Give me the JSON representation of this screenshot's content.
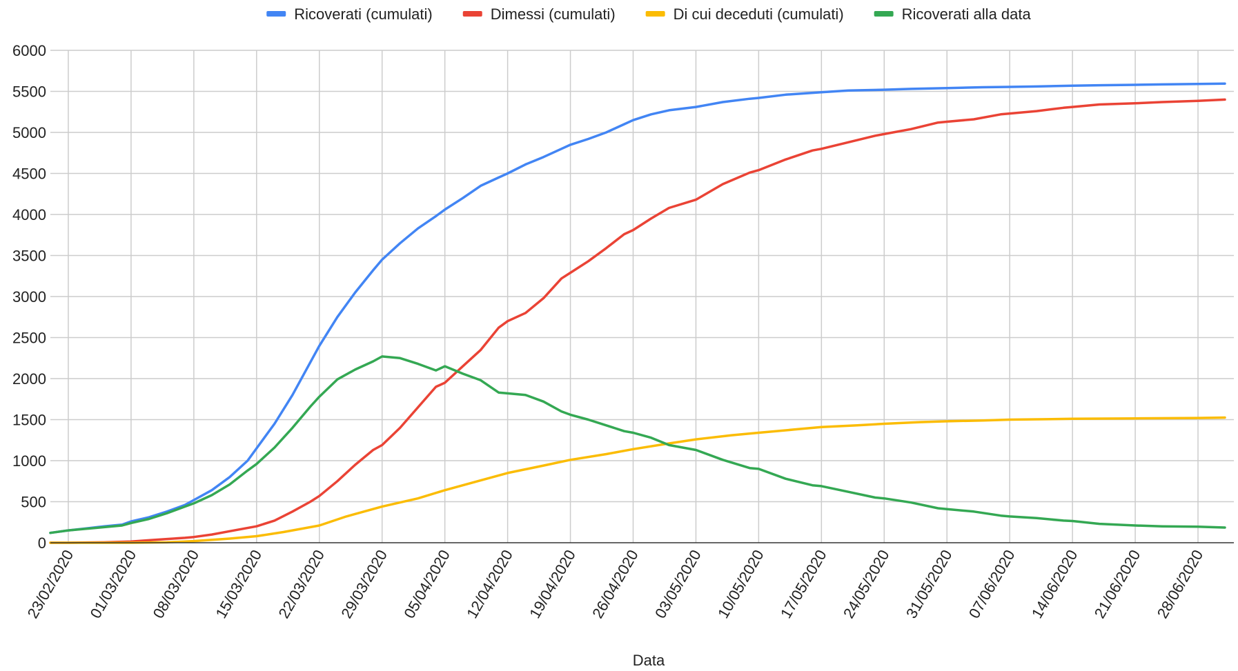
{
  "chart_data": {
    "type": "line",
    "xlabel": "Data",
    "ylabel": "",
    "ylim": [
      0,
      6000
    ],
    "y_ticks": [
      0,
      500,
      1000,
      1500,
      2000,
      2500,
      3000,
      3500,
      4000,
      4500,
      5000,
      5500,
      6000
    ],
    "x_tick_labels": [
      "23/02/2020",
      "01/03/2020",
      "08/03/2020",
      "15/03/2020",
      "22/03/2020",
      "29/03/2020",
      "05/04/2020",
      "12/04/2020",
      "19/04/2020",
      "26/04/2020",
      "03/05/2020",
      "10/05/2020",
      "17/05/2020",
      "24/05/2020",
      "31/05/2020",
      "07/06/2020",
      "14/06/2020",
      "21/06/2020",
      "28/06/2020"
    ],
    "x_range": [
      "21/02/2020",
      "02/07/2020"
    ],
    "grid": true,
    "legend_position": "top",
    "series": [
      {
        "name": "Ricoverati (cumulati)",
        "color": "#4285F4",
        "points": [
          [
            "21/02/2020",
            120
          ],
          [
            "23/02/2020",
            150
          ],
          [
            "25/02/2020",
            175
          ],
          [
            "27/02/2020",
            200
          ],
          [
            "29/02/2020",
            220
          ],
          [
            "01/03/2020",
            260
          ],
          [
            "03/03/2020",
            310
          ],
          [
            "05/03/2020",
            380
          ],
          [
            "07/03/2020",
            460
          ],
          [
            "08/03/2020",
            520
          ],
          [
            "10/03/2020",
            640
          ],
          [
            "12/03/2020",
            800
          ],
          [
            "14/03/2020",
            1000
          ],
          [
            "15/03/2020",
            1150
          ],
          [
            "17/03/2020",
            1450
          ],
          [
            "19/03/2020",
            1800
          ],
          [
            "21/03/2020",
            2200
          ],
          [
            "22/03/2020",
            2400
          ],
          [
            "24/03/2020",
            2750
          ],
          [
            "26/03/2020",
            3050
          ],
          [
            "28/03/2020",
            3320
          ],
          [
            "29/03/2020",
            3450
          ],
          [
            "31/03/2020",
            3650
          ],
          [
            "02/04/2020",
            3830
          ],
          [
            "04/04/2020",
            3980
          ],
          [
            "05/04/2020",
            4060
          ],
          [
            "07/04/2020",
            4200
          ],
          [
            "09/04/2020",
            4350
          ],
          [
            "11/04/2020",
            4450
          ],
          [
            "12/04/2020",
            4500
          ],
          [
            "14/04/2020",
            4610
          ],
          [
            "16/04/2020",
            4700
          ],
          [
            "18/04/2020",
            4800
          ],
          [
            "19/04/2020",
            4850
          ],
          [
            "21/04/2020",
            4920
          ],
          [
            "23/04/2020",
            5000
          ],
          [
            "25/04/2020",
            5100
          ],
          [
            "26/04/2020",
            5150
          ],
          [
            "28/04/2020",
            5220
          ],
          [
            "30/04/2020",
            5270
          ],
          [
            "03/05/2020",
            5310
          ],
          [
            "06/05/2020",
            5370
          ],
          [
            "09/05/2020",
            5410
          ],
          [
            "10/05/2020",
            5420
          ],
          [
            "13/05/2020",
            5460
          ],
          [
            "17/05/2020",
            5490
          ],
          [
            "20/05/2020",
            5510
          ],
          [
            "24/05/2020",
            5520
          ],
          [
            "27/05/2020",
            5530
          ],
          [
            "31/05/2020",
            5540
          ],
          [
            "04/06/2020",
            5550
          ],
          [
            "07/06/2020",
            5555
          ],
          [
            "10/06/2020",
            5560
          ],
          [
            "14/06/2020",
            5570
          ],
          [
            "17/06/2020",
            5575
          ],
          [
            "21/06/2020",
            5580
          ],
          [
            "24/06/2020",
            5585
          ],
          [
            "28/06/2020",
            5590
          ],
          [
            "01/07/2020",
            5595
          ]
        ]
      },
      {
        "name": "Dimessi (cumulati)",
        "color": "#EA4335",
        "points": [
          [
            "21/02/2020",
            0
          ],
          [
            "23/02/2020",
            0
          ],
          [
            "27/02/2020",
            5
          ],
          [
            "01/03/2020",
            15
          ],
          [
            "03/03/2020",
            30
          ],
          [
            "05/03/2020",
            45
          ],
          [
            "07/03/2020",
            60
          ],
          [
            "08/03/2020",
            70
          ],
          [
            "10/03/2020",
            100
          ],
          [
            "12/03/2020",
            140
          ],
          [
            "15/03/2020",
            200
          ],
          [
            "17/03/2020",
            270
          ],
          [
            "19/03/2020",
            380
          ],
          [
            "21/03/2020",
            500
          ],
          [
            "22/03/2020",
            570
          ],
          [
            "24/03/2020",
            750
          ],
          [
            "26/03/2020",
            950
          ],
          [
            "28/03/2020",
            1130
          ],
          [
            "29/03/2020",
            1190
          ],
          [
            "31/03/2020",
            1400
          ],
          [
            "02/04/2020",
            1650
          ],
          [
            "04/04/2020",
            1900
          ],
          [
            "05/04/2020",
            1950
          ],
          [
            "07/04/2020",
            2150
          ],
          [
            "09/04/2020",
            2350
          ],
          [
            "11/04/2020",
            2620
          ],
          [
            "12/04/2020",
            2700
          ],
          [
            "14/04/2020",
            2800
          ],
          [
            "16/04/2020",
            2980
          ],
          [
            "18/04/2020",
            3220
          ],
          [
            "19/04/2020",
            3290
          ],
          [
            "21/04/2020",
            3430
          ],
          [
            "23/04/2020",
            3590
          ],
          [
            "25/04/2020",
            3760
          ],
          [
            "26/04/2020",
            3810
          ],
          [
            "28/04/2020",
            3950
          ],
          [
            "30/04/2020",
            4080
          ],
          [
            "03/05/2020",
            4180
          ],
          [
            "06/05/2020",
            4370
          ],
          [
            "09/05/2020",
            4510
          ],
          [
            "10/05/2020",
            4540
          ],
          [
            "13/05/2020",
            4670
          ],
          [
            "16/05/2020",
            4780
          ],
          [
            "17/05/2020",
            4800
          ],
          [
            "20/05/2020",
            4880
          ],
          [
            "23/05/2020",
            4960
          ],
          [
            "24/05/2020",
            4980
          ],
          [
            "27/05/2020",
            5040
          ],
          [
            "30/05/2020",
            5120
          ],
          [
            "31/05/2020",
            5130
          ],
          [
            "03/06/2020",
            5160
          ],
          [
            "06/06/2020",
            5220
          ],
          [
            "07/06/2020",
            5230
          ],
          [
            "10/06/2020",
            5260
          ],
          [
            "13/06/2020",
            5300
          ],
          [
            "14/06/2020",
            5310
          ],
          [
            "17/06/2020",
            5340
          ],
          [
            "21/06/2020",
            5355
          ],
          [
            "24/06/2020",
            5370
          ],
          [
            "28/06/2020",
            5385
          ],
          [
            "01/07/2020",
            5400
          ]
        ]
      },
      {
        "name": "Di cui deceduti (cumulati)",
        "color": "#FBBC04",
        "points": [
          [
            "21/02/2020",
            0
          ],
          [
            "01/03/2020",
            0
          ],
          [
            "05/03/2020",
            5
          ],
          [
            "08/03/2020",
            20
          ],
          [
            "12/03/2020",
            50
          ],
          [
            "15/03/2020",
            80
          ],
          [
            "18/03/2020",
            130
          ],
          [
            "22/03/2020",
            210
          ],
          [
            "25/03/2020",
            320
          ],
          [
            "29/03/2020",
            440
          ],
          [
            "02/04/2020",
            540
          ],
          [
            "05/04/2020",
            640
          ],
          [
            "09/04/2020",
            760
          ],
          [
            "12/04/2020",
            850
          ],
          [
            "16/04/2020",
            940
          ],
          [
            "19/04/2020",
            1010
          ],
          [
            "23/04/2020",
            1080
          ],
          [
            "26/04/2020",
            1140
          ],
          [
            "30/04/2020",
            1210
          ],
          [
            "03/05/2020",
            1260
          ],
          [
            "07/05/2020",
            1310
          ],
          [
            "10/05/2020",
            1340
          ],
          [
            "14/05/2020",
            1380
          ],
          [
            "17/05/2020",
            1410
          ],
          [
            "21/05/2020",
            1430
          ],
          [
            "24/05/2020",
            1450
          ],
          [
            "28/05/2020",
            1470
          ],
          [
            "31/05/2020",
            1480
          ],
          [
            "04/06/2020",
            1490
          ],
          [
            "07/06/2020",
            1500
          ],
          [
            "11/06/2020",
            1505
          ],
          [
            "14/06/2020",
            1510
          ],
          [
            "21/06/2020",
            1515
          ],
          [
            "28/06/2020",
            1520
          ],
          [
            "01/07/2020",
            1525
          ]
        ]
      },
      {
        "name": "Ricoverati alla data",
        "color": "#34A853",
        "points": [
          [
            "21/02/2020",
            120
          ],
          [
            "23/02/2020",
            150
          ],
          [
            "25/02/2020",
            170
          ],
          [
            "27/02/2020",
            190
          ],
          [
            "29/02/2020",
            210
          ],
          [
            "01/03/2020",
            240
          ],
          [
            "03/03/2020",
            290
          ],
          [
            "05/03/2020",
            360
          ],
          [
            "07/03/2020",
            440
          ],
          [
            "08/03/2020",
            480
          ],
          [
            "10/03/2020",
            580
          ],
          [
            "12/03/2020",
            710
          ],
          [
            "14/03/2020",
            880
          ],
          [
            "15/03/2020",
            960
          ],
          [
            "17/03/2020",
            1160
          ],
          [
            "19/03/2020",
            1400
          ],
          [
            "21/03/2020",
            1660
          ],
          [
            "22/03/2020",
            1780
          ],
          [
            "24/03/2020",
            1990
          ],
          [
            "26/03/2020",
            2110
          ],
          [
            "28/03/2020",
            2210
          ],
          [
            "29/03/2020",
            2270
          ],
          [
            "31/03/2020",
            2250
          ],
          [
            "02/04/2020",
            2180
          ],
          [
            "04/04/2020",
            2100
          ],
          [
            "05/04/2020",
            2150
          ],
          [
            "07/04/2020",
            2060
          ],
          [
            "09/04/2020",
            1980
          ],
          [
            "11/04/2020",
            1830
          ],
          [
            "12/04/2020",
            1820
          ],
          [
            "14/04/2020",
            1800
          ],
          [
            "16/04/2020",
            1720
          ],
          [
            "18/04/2020",
            1600
          ],
          [
            "19/04/2020",
            1560
          ],
          [
            "21/04/2020",
            1500
          ],
          [
            "23/04/2020",
            1430
          ],
          [
            "25/04/2020",
            1360
          ],
          [
            "26/04/2020",
            1340
          ],
          [
            "28/04/2020",
            1280
          ],
          [
            "30/04/2020",
            1190
          ],
          [
            "03/05/2020",
            1130
          ],
          [
            "06/05/2020",
            1010
          ],
          [
            "09/05/2020",
            910
          ],
          [
            "10/05/2020",
            900
          ],
          [
            "13/05/2020",
            780
          ],
          [
            "16/05/2020",
            700
          ],
          [
            "17/05/2020",
            690
          ],
          [
            "20/05/2020",
            620
          ],
          [
            "23/05/2020",
            550
          ],
          [
            "24/05/2020",
            540
          ],
          [
            "27/05/2020",
            490
          ],
          [
            "30/05/2020",
            420
          ],
          [
            "31/05/2020",
            410
          ],
          [
            "03/06/2020",
            380
          ],
          [
            "06/06/2020",
            330
          ],
          [
            "07/06/2020",
            320
          ],
          [
            "10/06/2020",
            300
          ],
          [
            "13/06/2020",
            270
          ],
          [
            "14/06/2020",
            265
          ],
          [
            "17/06/2020",
            230
          ],
          [
            "21/06/2020",
            210
          ],
          [
            "24/06/2020",
            200
          ],
          [
            "28/06/2020",
            195
          ],
          [
            "01/07/2020",
            185
          ]
        ]
      }
    ]
  }
}
